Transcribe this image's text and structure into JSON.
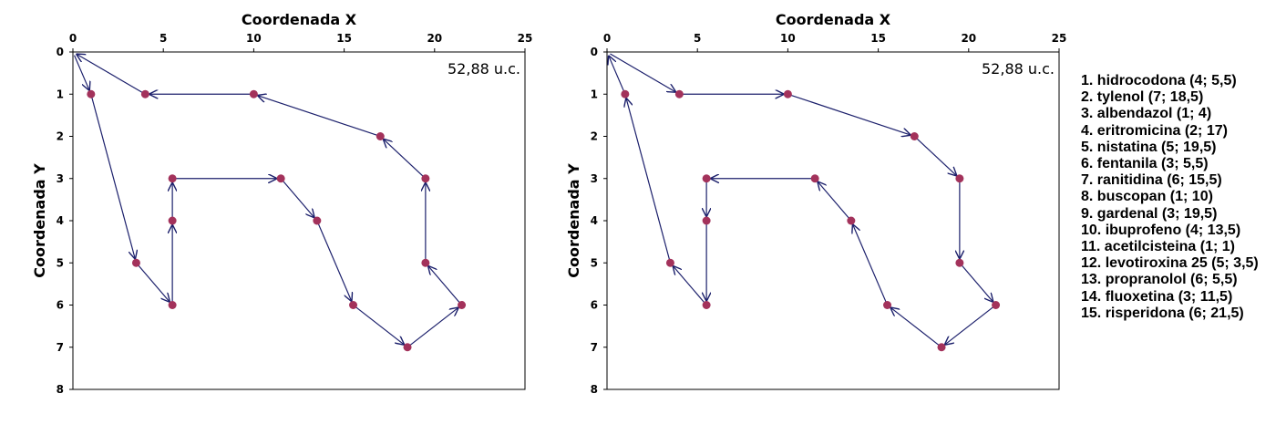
{
  "chart_data": [
    {
      "type": "scatter",
      "xlabel": "Coordenada X",
      "ylabel": "Coordenada Y",
      "xlim": [
        0,
        25
      ],
      "ylim": [
        8,
        0
      ],
      "x_ticks": [
        0,
        5,
        10,
        15,
        20,
        25
      ],
      "y_ticks": [
        0,
        1,
        2,
        3,
        4,
        5,
        6,
        7,
        8
      ],
      "x_axis_position": "top",
      "y_axis_inverted": true,
      "grid": false,
      "annotation": "52,88 u.c.",
      "annotation_position": "top-right",
      "points": [
        {
          "x": 1,
          "y": 1
        },
        {
          "x": 4,
          "y": 1
        },
        {
          "x": 10,
          "y": 1
        },
        {
          "x": 17,
          "y": 2
        },
        {
          "x": 19.5,
          "y": 3
        },
        {
          "x": 19.5,
          "y": 5
        },
        {
          "x": 21.5,
          "y": 6
        },
        {
          "x": 18.5,
          "y": 7
        },
        {
          "x": 15.5,
          "y": 6
        },
        {
          "x": 13.5,
          "y": 4
        },
        {
          "x": 11.5,
          "y": 3
        },
        {
          "x": 5.5,
          "y": 3
        },
        {
          "x": 5.5,
          "y": 4
        },
        {
          "x": 5.5,
          "y": 6
        },
        {
          "x": 3.5,
          "y": 5
        }
      ],
      "route": [
        [
          0,
          0
        ],
        [
          1,
          1
        ],
        [
          3.5,
          5
        ],
        [
          5.5,
          6
        ],
        [
          5.5,
          4
        ],
        [
          5.5,
          3
        ],
        [
          11.5,
          3
        ],
        [
          13.5,
          4
        ],
        [
          15.5,
          6
        ],
        [
          18.5,
          7
        ],
        [
          21.5,
          6
        ],
        [
          19.5,
          5
        ],
        [
          19.5,
          3
        ],
        [
          17,
          2
        ],
        [
          10,
          1
        ],
        [
          4,
          1
        ],
        [
          0,
          0
        ]
      ]
    },
    {
      "type": "scatter",
      "xlabel": "Coordenada X",
      "ylabel": "Coordenada Y",
      "xlim": [
        0,
        25
      ],
      "ylim": [
        8,
        0
      ],
      "x_ticks": [
        0,
        5,
        10,
        15,
        20,
        25
      ],
      "y_ticks": [
        0,
        1,
        2,
        3,
        4,
        5,
        6,
        7,
        8
      ],
      "x_axis_position": "top",
      "y_axis_inverted": true,
      "grid": false,
      "annotation": "52,88 u.c.",
      "annotation_position": "top-right",
      "points": [
        {
          "x": 1,
          "y": 1
        },
        {
          "x": 4,
          "y": 1
        },
        {
          "x": 10,
          "y": 1
        },
        {
          "x": 17,
          "y": 2
        },
        {
          "x": 19.5,
          "y": 3
        },
        {
          "x": 19.5,
          "y": 5
        },
        {
          "x": 21.5,
          "y": 6
        },
        {
          "x": 18.5,
          "y": 7
        },
        {
          "x": 15.5,
          "y": 6
        },
        {
          "x": 13.5,
          "y": 4
        },
        {
          "x": 11.5,
          "y": 3
        },
        {
          "x": 5.5,
          "y": 3
        },
        {
          "x": 5.5,
          "y": 4
        },
        {
          "x": 5.5,
          "y": 6
        },
        {
          "x": 3.5,
          "y": 5
        }
      ],
      "route": [
        [
          0,
          0
        ],
        [
          4,
          1
        ],
        [
          10,
          1
        ],
        [
          17,
          2
        ],
        [
          19.5,
          3
        ],
        [
          19.5,
          5
        ],
        [
          21.5,
          6
        ],
        [
          18.5,
          7
        ],
        [
          15.5,
          6
        ],
        [
          13.5,
          4
        ],
        [
          11.5,
          3
        ],
        [
          5.5,
          3
        ],
        [
          5.5,
          4
        ],
        [
          5.5,
          6
        ],
        [
          3.5,
          5
        ],
        [
          1,
          1
        ],
        [
          0,
          0
        ]
      ]
    }
  ],
  "legend": [
    "1. hidrocodona (4; 5,5)",
    "2. tylenol (7; 18,5)",
    "3. albendazol (1; 4)",
    "4. eritromicina (2; 17)",
    "5. nistatina (5; 19,5)",
    "6. fentanila (3; 5,5)",
    "7. ranitidina (6; 15,5)",
    "8. buscopan (1; 10)",
    "9. gardenal (3; 19,5)",
    "10. ibuprofeno (4; 13,5)",
    "11. acetilcisteina (1; 1)",
    "12. levotiroxina 25 (5; 3,5)",
    "13. propranolol (6; 5,5)",
    "14. fluoxetina (3; 11,5)",
    "15. risperidona (6; 21,5)"
  ],
  "colors": {
    "route": "#1b1f6b",
    "point": "#a3325b",
    "axis": "#000000"
  }
}
